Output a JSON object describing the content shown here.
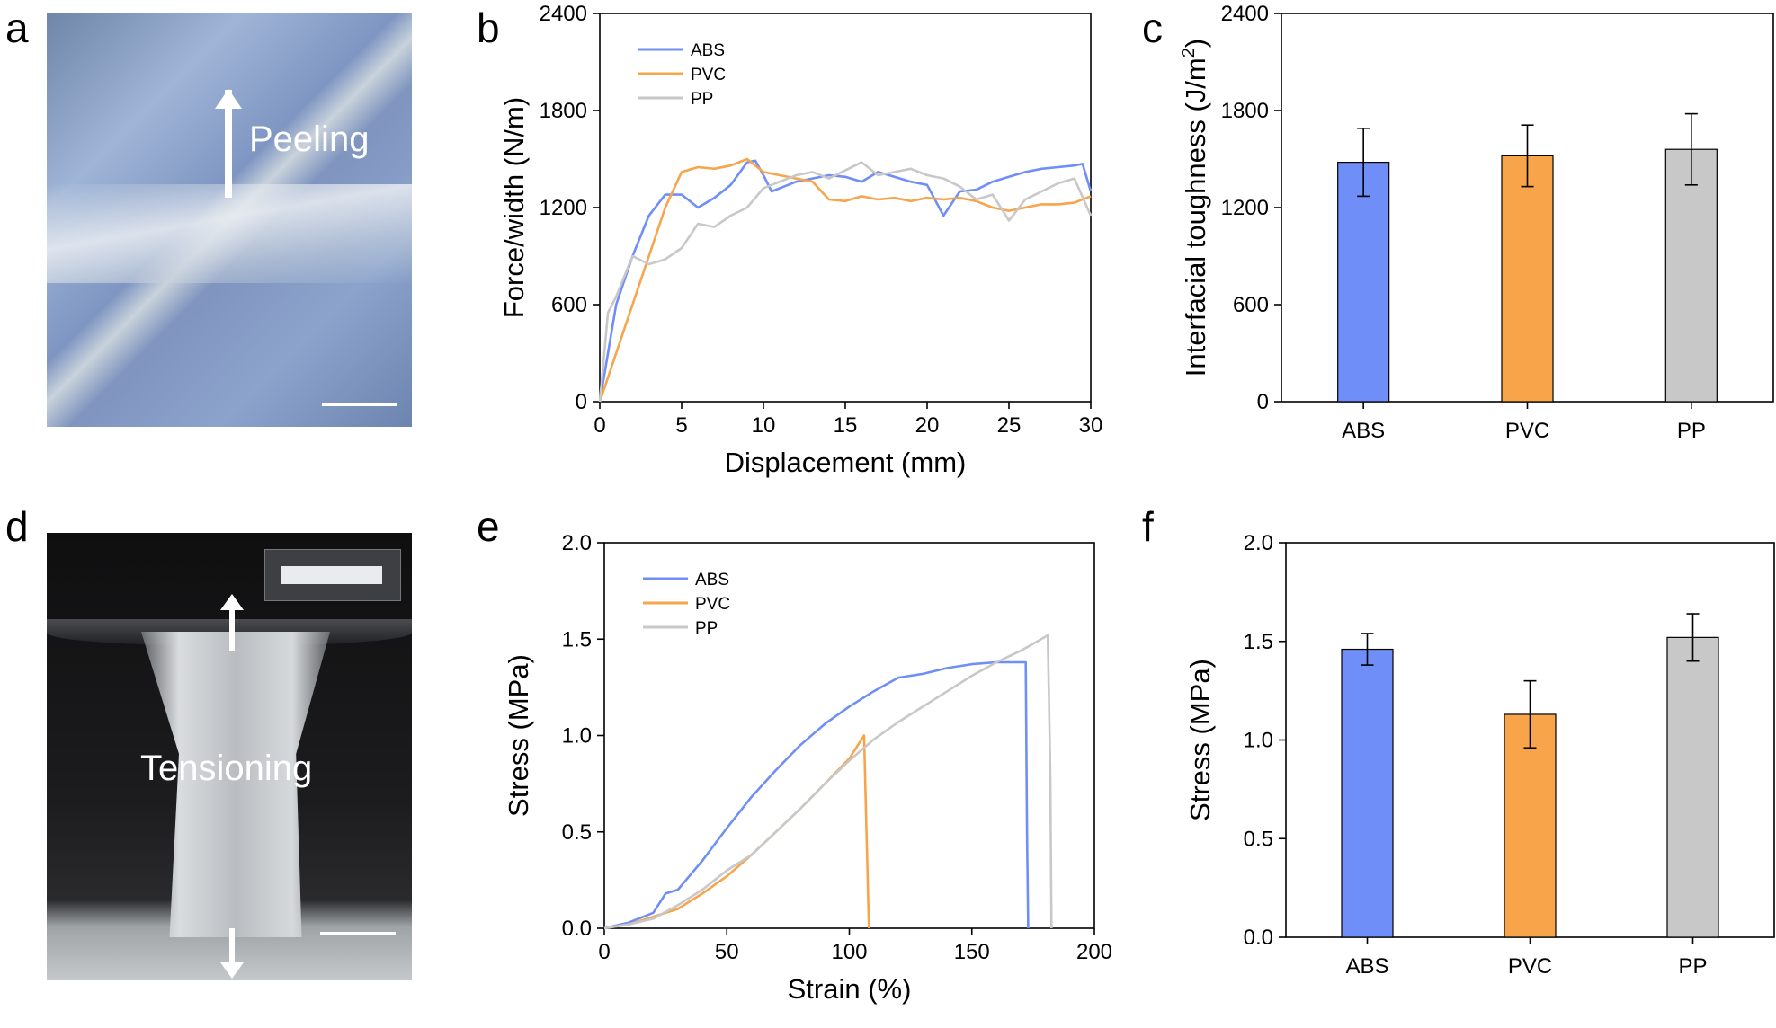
{
  "panels": {
    "a": "a",
    "b": "b",
    "c": "c",
    "d": "d",
    "e": "e",
    "f": "f"
  },
  "photos": {
    "peeling_label": "Peeling",
    "tensioning_label": "Tensioning"
  },
  "colors": {
    "ABS": "#6f8ef7",
    "PVC": "#f7a44a",
    "PP": "#c8c8c8"
  },
  "chart_data": [
    {
      "id": "b",
      "type": "line",
      "xlabel": "Displacement (mm)",
      "ylabel": "Force/width (N/m)",
      "xlim": [
        0,
        30
      ],
      "ylim": [
        0,
        2400
      ],
      "xticks": [
        0,
        5,
        10,
        15,
        20,
        25,
        30
      ],
      "yticks": [
        0,
        600,
        1200,
        1800,
        2400
      ],
      "legend_position": "top-left",
      "series": [
        {
          "name": "ABS",
          "x": [
            0,
            0.5,
            1,
            2,
            3,
            4,
            5,
            6,
            7,
            8,
            9,
            9.5,
            10,
            10.5,
            11,
            12,
            13,
            14,
            15,
            16,
            17,
            18,
            19,
            20,
            21,
            22,
            23,
            24,
            25,
            26,
            27,
            28,
            29,
            29.5,
            30
          ],
          "y": [
            0,
            300,
            600,
            900,
            1150,
            1280,
            1280,
            1200,
            1260,
            1340,
            1480,
            1490,
            1400,
            1300,
            1320,
            1360,
            1380,
            1400,
            1390,
            1360,
            1420,
            1390,
            1360,
            1340,
            1150,
            1300,
            1310,
            1360,
            1390,
            1420,
            1440,
            1450,
            1460,
            1470,
            1300
          ]
        },
        {
          "name": "PVC",
          "x": [
            0,
            1,
            2,
            3,
            4,
            5,
            6,
            7,
            8,
            9,
            10,
            11,
            12,
            13,
            14,
            15,
            16,
            17,
            18,
            19,
            20,
            21,
            22,
            23,
            24,
            25,
            26,
            27,
            28,
            29,
            30
          ],
          "y": [
            0,
            300,
            600,
            900,
            1200,
            1420,
            1450,
            1440,
            1460,
            1500,
            1420,
            1400,
            1380,
            1360,
            1250,
            1240,
            1270,
            1250,
            1260,
            1240,
            1260,
            1250,
            1260,
            1240,
            1200,
            1180,
            1200,
            1220,
            1220,
            1230,
            1270
          ]
        },
        {
          "name": "PP",
          "x": [
            0,
            0.5,
            1,
            2,
            3,
            4,
            5,
            6,
            7,
            8,
            9,
            10,
            11,
            12,
            13,
            14,
            15,
            16,
            17,
            18,
            19,
            20,
            21,
            22,
            23,
            24,
            25,
            26,
            27,
            28,
            29,
            30
          ],
          "y": [
            0,
            550,
            650,
            900,
            850,
            880,
            950,
            1100,
            1080,
            1150,
            1200,
            1320,
            1360,
            1400,
            1420,
            1380,
            1430,
            1480,
            1400,
            1420,
            1440,
            1400,
            1380,
            1330,
            1250,
            1280,
            1120,
            1250,
            1300,
            1350,
            1380,
            1150
          ]
        }
      ]
    },
    {
      "id": "c",
      "type": "bar",
      "ylabel": "Interfacial toughness (J/m",
      "ylabel_sup": "2",
      "ylabel_end": ")",
      "categories": [
        "ABS",
        "PVC",
        "PP"
      ],
      "values": [
        1480,
        1520,
        1560
      ],
      "errors": [
        210,
        190,
        220
      ],
      "ylim": [
        0,
        2400
      ],
      "yticks": [
        0,
        600,
        1200,
        1800,
        2400
      ]
    },
    {
      "id": "e",
      "type": "line",
      "xlabel": "Strain (%)",
      "ylabel": "Stress (MPa)",
      "xlim": [
        0,
        200
      ],
      "ylim": [
        0,
        2.0
      ],
      "xticks": [
        0,
        50,
        100,
        150,
        200
      ],
      "yticks": [
        "0.0",
        "0.5",
        "1.0",
        "1.5",
        "2.0"
      ],
      "legend_position": "top-left",
      "series": [
        {
          "name": "ABS",
          "x": [
            0,
            10,
            20,
            25,
            30,
            40,
            50,
            60,
            70,
            80,
            90,
            100,
            110,
            120,
            125,
            130,
            140,
            150,
            160,
            172,
            172.5,
            173
          ],
          "y": [
            0,
            0.03,
            0.08,
            0.18,
            0.2,
            0.35,
            0.52,
            0.68,
            0.82,
            0.95,
            1.06,
            1.15,
            1.23,
            1.3,
            1.31,
            1.32,
            1.35,
            1.37,
            1.38,
            1.38,
            0.5,
            0
          ]
        },
        {
          "name": "PVC",
          "x": [
            0,
            10,
            20,
            30,
            40,
            50,
            60,
            70,
            80,
            90,
            100,
            106,
            107,
            108
          ],
          "y": [
            0,
            0.02,
            0.06,
            0.1,
            0.18,
            0.27,
            0.38,
            0.5,
            0.62,
            0.75,
            0.88,
            1.0,
            0.5,
            0
          ]
        },
        {
          "name": "PP",
          "x": [
            0,
            10,
            20,
            30,
            40,
            50,
            55,
            60,
            70,
            80,
            90,
            100,
            110,
            120,
            130,
            140,
            150,
            160,
            170,
            181,
            182,
            182.5
          ],
          "y": [
            0,
            0.02,
            0.05,
            0.12,
            0.2,
            0.3,
            0.34,
            0.38,
            0.5,
            0.62,
            0.75,
            0.87,
            0.98,
            1.07,
            1.15,
            1.23,
            1.31,
            1.38,
            1.44,
            1.52,
            0.8,
            0
          ]
        }
      ]
    },
    {
      "id": "f",
      "type": "bar",
      "ylabel": "Stress (MPa)",
      "categories": [
        "ABS",
        "PVC",
        "PP"
      ],
      "values": [
        1.46,
        1.13,
        1.52
      ],
      "errors": [
        0.08,
        0.17,
        0.12
      ],
      "ylim": [
        0,
        2.0
      ],
      "yticks": [
        "0.0",
        "0.5",
        "1.0",
        "1.5",
        "2.0"
      ]
    }
  ]
}
